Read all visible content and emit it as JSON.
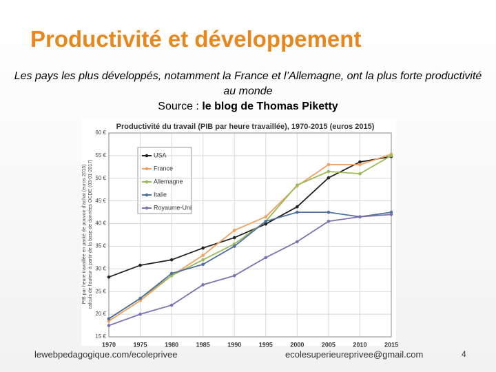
{
  "slide": {
    "title": "Productivité et développement",
    "subtitle": "Les pays les plus développés, notamment la France et l’Allemagne, ont la plus forte productivité au monde",
    "source_prefix": "Source :",
    "source_name": "le blog de Thomas Piketty",
    "footer_left": "lewebpedagogique.com/ecoleprivee",
    "footer_right": "ecolesuperieureprivee@gmail.com",
    "page_number": "4"
  },
  "chart_data": {
    "type": "line",
    "title": "Productivité du travail (PIB par heure travaillée), 1970-2015 (euros 2015)",
    "y_label": "PIB par heure travaillée en parité de pouvoir d'achat (euros 2015)",
    "y_label_note": "calculs de l'auteur à partir de la base de données OCDE (03-01-2017)",
    "x": [
      1970,
      1975,
      1980,
      1985,
      1990,
      1995,
      2000,
      2005,
      2010,
      2015
    ],
    "xlim": [
      1970,
      2015
    ],
    "xticks": [
      1970,
      1975,
      1980,
      1985,
      1990,
      1995,
      2000,
      2005,
      2010,
      2015
    ],
    "ylim": [
      15,
      60
    ],
    "yticks": [
      {
        "value": 15,
        "label": "15 €"
      },
      {
        "value": 20,
        "label": "20 €"
      },
      {
        "value": 25,
        "label": "25 €"
      },
      {
        "value": 30,
        "label": "30 €"
      },
      {
        "value": 35,
        "label": "35 €"
      },
      {
        "value": 40,
        "label": "40 €"
      },
      {
        "value": 45,
        "label": "45 €"
      },
      {
        "value": 50,
        "label": "50 €"
      },
      {
        "value": 55,
        "label": "55 €"
      },
      {
        "value": 60,
        "label": "60 €"
      }
    ],
    "grid": true,
    "legend": "upper left",
    "series": [
      {
        "name": "USA",
        "color": "#222222",
        "values": [
          28.2,
          30.8,
          32,
          34.6,
          36.9,
          39.9,
          43.7,
          50.1,
          53.6,
          54.8
        ]
      },
      {
        "name": "France",
        "color": "#f0a060",
        "values": [
          18.5,
          23,
          28.5,
          33,
          38.5,
          41.5,
          48.3,
          53,
          53,
          55.3
        ]
      },
      {
        "name": "Allemagne",
        "color": "#9bbb59",
        "values": [
          19,
          23.5,
          28.5,
          32,
          35.5,
          40.5,
          48.5,
          51.5,
          51,
          55
        ]
      },
      {
        "name": "Italie",
        "color": "#4f6f9f",
        "values": [
          19,
          23.5,
          29,
          31,
          35,
          40.5,
          42.5,
          42.5,
          41.5,
          42.5
        ]
      },
      {
        "name": "Royaume-Uni",
        "color": "#7f6faf",
        "values": [
          17.5,
          20,
          22,
          26.5,
          28.5,
          32.5,
          36,
          40.5,
          41.5,
          42
        ]
      }
    ]
  }
}
